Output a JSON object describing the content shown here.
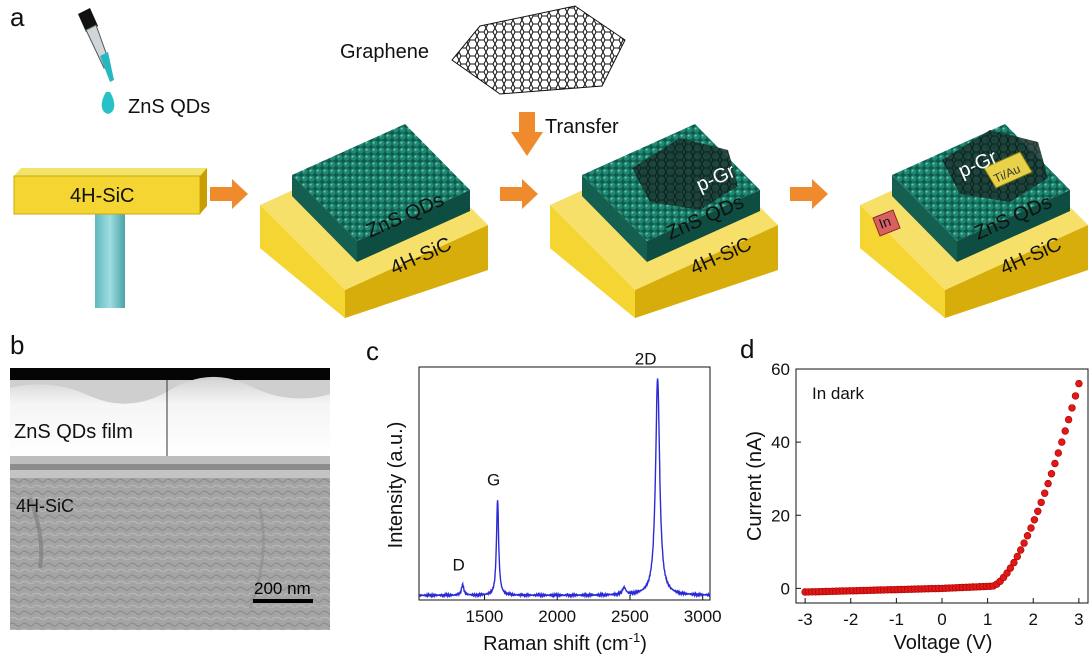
{
  "panels": {
    "a": {
      "letter": "a",
      "labels": {
        "qds": "ZnS QDs",
        "graphene": "Graphene",
        "transfer": "Transfer",
        "substrate": "4H-SiC",
        "qd_layer": "ZnS QDs",
        "pgr": "p-Gr",
        "contact": "Ti/Au",
        "indium": "In"
      }
    },
    "b": {
      "letter": "b",
      "film_label": "ZnS QDs film",
      "substrate_label": "4H-SiC",
      "scale_bar": "200 nm"
    },
    "c": {
      "letter": "c",
      "xlabel": "Raman shift (cm",
      "xlabel_sup": "-1",
      "xlabel_end": ")",
      "ylabel": "Intensity (a.u.)"
    },
    "d": {
      "letter": "d",
      "xlabel": "Voltage (V)",
      "ylabel": "Current (nA)",
      "annotation": "In dark"
    }
  },
  "chart_data": [
    {
      "type": "line",
      "panel": "c",
      "xlabel": "Raman shift (cm-1)",
      "ylabel": "Intensity (a.u.)",
      "xlim": [
        1050,
        3050
      ],
      "xticks": [
        1500,
        2000,
        2500,
        3000
      ],
      "yticks": [],
      "grid": false,
      "color": "#2b2bd6",
      "baseline": 0.02,
      "peaks": [
        {
          "label": "D",
          "x": 1350,
          "height": 0.045,
          "width": 10
        },
        {
          "label": "G",
          "x": 1590,
          "height": 0.41,
          "width": 9
        },
        {
          "label": "",
          "x": 2460,
          "height": 0.03,
          "width": 14
        },
        {
          "label": "2D",
          "x": 2690,
          "height": 0.93,
          "width": 17
        }
      ]
    },
    {
      "type": "scatter",
      "panel": "d",
      "xlabel": "Voltage (V)",
      "ylabel": "Current (nA)",
      "xlim": [
        -3.2,
        3.2
      ],
      "ylim": [
        -4,
        60
      ],
      "xticks": [
        -3,
        -2,
        -1,
        0,
        1,
        2,
        3
      ],
      "yticks": [
        0,
        20,
        40,
        60
      ],
      "grid": false,
      "color": "#e01818",
      "annotation": "In dark",
      "model": {
        "turn_on_voltage": 1.1,
        "reverse_current": -1.0,
        "current_at_3V": 56
      }
    }
  ]
}
